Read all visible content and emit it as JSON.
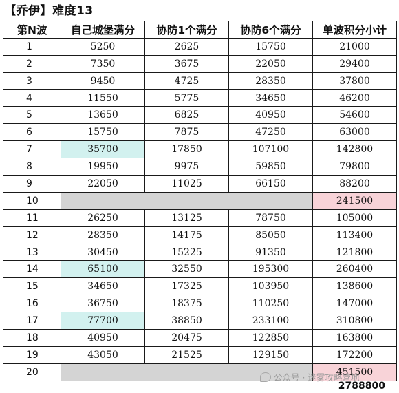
{
  "title": "【乔伊】难度13",
  "headers": [
    "第N波",
    "自己城堡满分",
    "协防1个满分",
    "协防6个满分",
    "单波积分小计"
  ],
  "rows": [
    {
      "wave": "1",
      "own": "5250",
      "assist1": "2625",
      "assist6": "15750",
      "subtotal": "21000"
    },
    {
      "wave": "2",
      "own": "7350",
      "assist1": "3675",
      "assist6": "22050",
      "subtotal": "29400"
    },
    {
      "wave": "3",
      "own": "9450",
      "assist1": "4725",
      "assist6": "28350",
      "subtotal": "37800"
    },
    {
      "wave": "4",
      "own": "11550",
      "assist1": "5775",
      "assist6": "34650",
      "subtotal": "46200"
    },
    {
      "wave": "5",
      "own": "13650",
      "assist1": "6825",
      "assist6": "40950",
      "subtotal": "54600"
    },
    {
      "wave": "6",
      "own": "15750",
      "assist1": "7875",
      "assist6": "47250",
      "subtotal": "63000"
    },
    {
      "wave": "7",
      "own": "35700",
      "assist1": "17850",
      "assist6": "107100",
      "subtotal": "142800",
      "own_highlight": true
    },
    {
      "wave": "8",
      "own": "19950",
      "assist1": "9975",
      "assist6": "59850",
      "subtotal": "79800"
    },
    {
      "wave": "9",
      "own": "22050",
      "assist1": "11025",
      "assist6": "66150",
      "subtotal": "88200"
    },
    {
      "wave": "10",
      "merged": true,
      "subtotal": "241500"
    },
    {
      "wave": "11",
      "own": "26250",
      "assist1": "13125",
      "assist6": "78750",
      "subtotal": "105000"
    },
    {
      "wave": "12",
      "own": "28350",
      "assist1": "14175",
      "assist6": "85050",
      "subtotal": "113400"
    },
    {
      "wave": "13",
      "own": "30450",
      "assist1": "15225",
      "assist6": "91350",
      "subtotal": "121800"
    },
    {
      "wave": "14",
      "own": "65100",
      "assist1": "32550",
      "assist6": "195300",
      "subtotal": "260400",
      "own_highlight": true
    },
    {
      "wave": "15",
      "own": "34650",
      "assist1": "17325",
      "assist6": "103950",
      "subtotal": "138600"
    },
    {
      "wave": "16",
      "own": "36750",
      "assist1": "18375",
      "assist6": "110250",
      "subtotal": "147000"
    },
    {
      "wave": "17",
      "own": "77700",
      "assist1": "38850",
      "assist6": "233100",
      "subtotal": "310800",
      "own_highlight": true
    },
    {
      "wave": "18",
      "own": "40950",
      "assist1": "20475",
      "assist6": "122850",
      "subtotal": "163800"
    },
    {
      "wave": "19",
      "own": "43050",
      "assist1": "21525",
      "assist6": "129150",
      "subtotal": "172200"
    },
    {
      "wave": "20",
      "merged": true,
      "subtotal": "451500"
    }
  ],
  "total": "2788800",
  "watermark": "公众号 · 迷雾攻略营地",
  "colors": {
    "highlight": "#d2f1ef",
    "merged": "#d4d4d4",
    "boss_subtotal": "#f8d3d8"
  }
}
